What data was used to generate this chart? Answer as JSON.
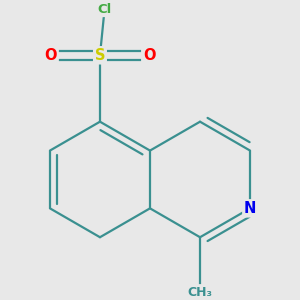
{
  "background_color": "#e8e8e8",
  "bond_color": "#3a9090",
  "bond_width": 1.6,
  "atom_labels": {
    "N": {
      "color": "#0000ee",
      "fontsize": 10.5,
      "fontweight": "bold"
    },
    "S": {
      "color": "#cccc00",
      "fontsize": 10.5,
      "fontweight": "bold"
    },
    "O": {
      "color": "#ff0000",
      "fontsize": 10.5,
      "fontweight": "bold"
    },
    "Cl": {
      "color": "#44aa44",
      "fontsize": 9.5,
      "fontweight": "bold"
    },
    "CH3": {
      "color": "#3a9090",
      "fontsize": 9.0,
      "fontweight": "bold"
    }
  },
  "figsize": [
    3.0,
    3.0
  ],
  "dpi": 100
}
